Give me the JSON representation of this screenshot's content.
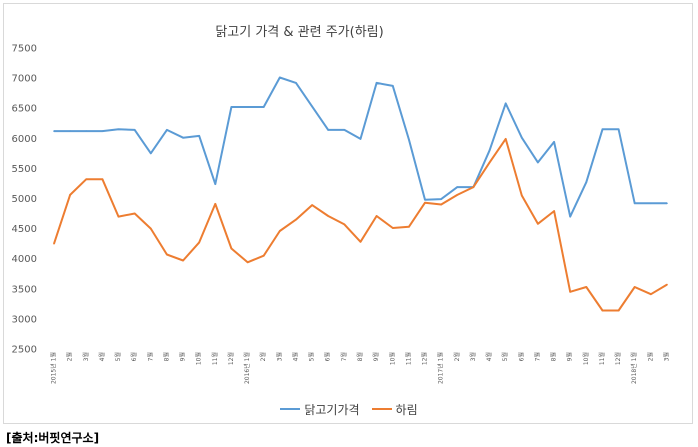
{
  "chart_data": {
    "type": "line",
    "title": "닭고기 가격 & 관련 주가(하림)",
    "xlabel": "",
    "ylabel": "",
    "ylim": [
      2500,
      7500
    ],
    "yticks": [
      2500,
      3000,
      3500,
      4000,
      4500,
      5000,
      5500,
      6000,
      6500,
      7000,
      7500
    ],
    "categories": [
      "2015년 1월",
      "2월",
      "3월",
      "4월",
      "5월",
      "6월",
      "7월",
      "8월",
      "9월",
      "10월",
      "11월",
      "12월",
      "2016년 1월",
      "2월",
      "3월",
      "4월",
      "5월",
      "6월",
      "7월",
      "8월",
      "9월",
      "10월",
      "11월",
      "12월",
      "2017년 1월",
      "2월",
      "3월",
      "4월",
      "5월",
      "6월",
      "7월",
      "8월",
      "9월",
      "10월",
      "11월",
      "12월",
      "2018년 1월",
      "2월",
      "3월"
    ],
    "series": [
      {
        "name": "닭고기가격",
        "color": "#5b9bd5",
        "values": [
          6120,
          6120,
          6120,
          6120,
          6150,
          6140,
          5750,
          6140,
          6010,
          6040,
          5240,
          6520,
          6520,
          6520,
          7010,
          6920,
          6530,
          6140,
          6140,
          5990,
          6920,
          6870,
          5980,
          4980,
          4990,
          5190,
          5190,
          5800,
          6580,
          6010,
          5600,
          5940,
          4700,
          5270,
          6150,
          6150,
          4920,
          4920,
          4920
        ]
      },
      {
        "name": "하림",
        "color": "#ed7d31",
        "values": [
          4250,
          5060,
          5320,
          5320,
          4700,
          4750,
          4500,
          4070,
          3970,
          4270,
          4910,
          4170,
          3940,
          4050,
          4460,
          4650,
          4890,
          4710,
          4570,
          4280,
          4710,
          4510,
          4530,
          4930,
          4900,
          5060,
          5190,
          5600,
          5990,
          5050,
          4580,
          4790,
          3450,
          3530,
          3140,
          3140,
          3530,
          3410,
          3570
        ]
      }
    ],
    "legend_position": "bottom",
    "grid": false
  },
  "source_note": "[출처:버핏연구소]"
}
